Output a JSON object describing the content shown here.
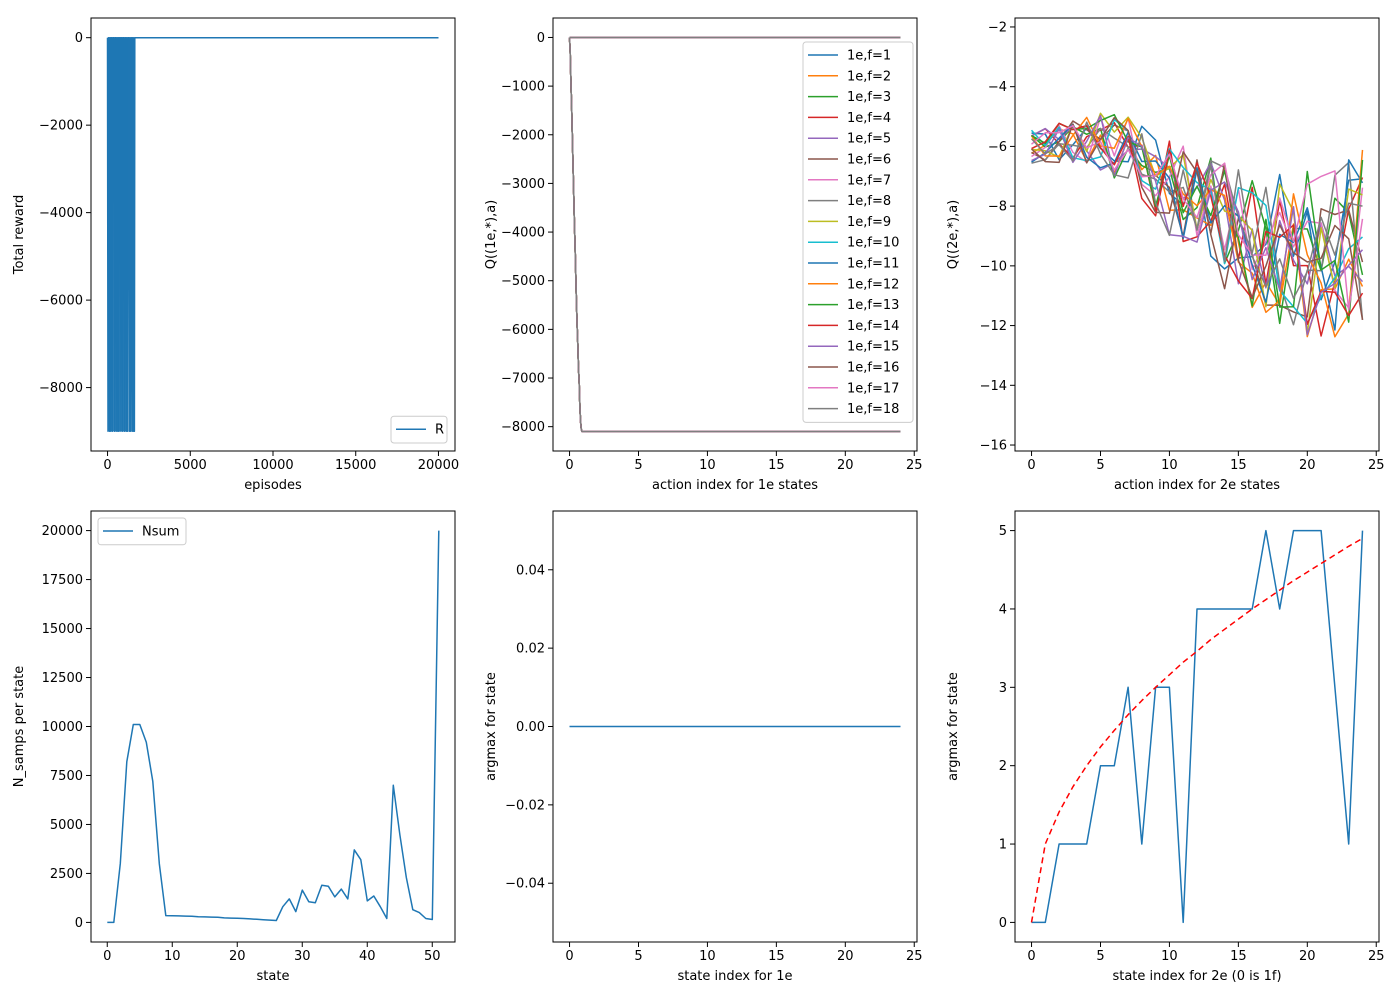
{
  "colors": {
    "tab10": [
      "#1f77b4",
      "#ff7f0e",
      "#2ca02c",
      "#d62728",
      "#9467bd",
      "#8c564b",
      "#e377c2",
      "#7f7f7f",
      "#bcbd22",
      "#17becf"
    ],
    "series_blue": "#1f77b4",
    "reference_red": "#ff0000"
  },
  "chart_data": [
    {
      "type": "line",
      "xlabel": "episodes",
      "ylabel": "Total reward",
      "xlim": [
        -1000,
        21000
      ],
      "ylim": [
        -9450,
        450
      ],
      "xticks": [
        0,
        5000,
        10000,
        15000,
        20000
      ],
      "yticks": [
        0,
        -2000,
        -4000,
        -6000,
        -8000
      ],
      "legend": {
        "placement": "lower right",
        "entries": [
          "R"
        ]
      },
      "series": [
        {
          "name": "R",
          "color": "#1f77b4",
          "style": "spiky",
          "x": [
            0,
            20000
          ],
          "y": [
            0,
            0
          ],
          "spikes": {
            "x_range": [
              0,
              1600
            ],
            "low": -9000,
            "high": 0
          }
        }
      ]
    },
    {
      "type": "line",
      "xlabel": "action index for 1e states",
      "ylabel": "Q((1e,*),a)",
      "xlim": [
        -1.2,
        25.2
      ],
      "ylim": [
        -8500,
        400
      ],
      "xticks": [
        0,
        5,
        10,
        15,
        20,
        25
      ],
      "yticks": [
        0,
        -1000,
        -2000,
        -3000,
        -4000,
        -5000,
        -6000,
        -7000,
        -8000
      ],
      "legend": {
        "placement": "upper right",
        "entries": [
          "1e,f=1",
          "1e,f=2",
          "1e,f=3",
          "1e,f=4",
          "1e,f=5",
          "1e,f=6",
          "1e,f=7",
          "1e,f=8",
          "1e,f=9",
          "1e,f=10",
          "1e,f=11",
          "1e,f=12",
          "1e,f=13",
          "1e,f=14",
          "1e,f=15",
          "1e,f=16",
          "1e,f=17",
          "1e,f=18"
        ]
      },
      "top_line": {
        "x": [
          0,
          24
        ],
        "y": [
          0,
          0
        ]
      },
      "drop_curve": {
        "x": [
          0,
          0.05,
          0.1,
          0.15,
          0.2,
          0.25,
          0.3,
          0.35,
          0.4,
          0.45,
          0.5,
          0.55,
          0.6,
          0.65,
          0.7,
          0.75,
          0.8,
          0.85,
          0.9,
          0.95,
          1.0,
          24
        ],
        "y": [
          0,
          -300,
          -900,
          -1400,
          -2000,
          -2600,
          -3200,
          -3800,
          -4300,
          -4900,
          -5400,
          -5900,
          -6300,
          -6800,
          -7100,
          -7600,
          -7900,
          -8050,
          -8100,
          -8100,
          -8100,
          -8100
        ]
      }
    },
    {
      "type": "line",
      "xlabel": "action index for 2e states",
      "ylabel": "Q((2e,*),a)",
      "xlim": [
        -1.2,
        25.2
      ],
      "ylim": [
        -16.2,
        -1.7
      ],
      "xticks": [
        0,
        5,
        10,
        15,
        20,
        25
      ],
      "yticks": [
        -2,
        -4,
        -6,
        -8,
        -10,
        -12,
        -14,
        -16
      ],
      "series_count": 18,
      "x": [
        0,
        1,
        2,
        3,
        4,
        5,
        6,
        7,
        8,
        9,
        10,
        11,
        12,
        13,
        14,
        15,
        16,
        17,
        18,
        19,
        20,
        21,
        22,
        23,
        24
      ],
      "trend": [
        -6.0,
        -6.0,
        -5.9,
        -5.9,
        -5.8,
        -5.8,
        -6.0,
        -6.2,
        -6.5,
        -6.9,
        -7.3,
        -7.7,
        -8.0,
        -8.3,
        -8.6,
        -8.9,
        -9.1,
        -9.3,
        -9.4,
        -9.5,
        -9.6,
        -9.6,
        -9.5,
        -9.3,
        -9.0
      ],
      "spread": [
        0.6,
        0.6,
        0.7,
        0.8,
        0.9,
        1.0,
        1.1,
        1.2,
        1.4,
        1.5,
        1.7,
        1.8,
        2.0,
        2.1,
        2.2,
        2.3,
        2.4,
        2.5,
        2.6,
        2.7,
        2.8,
        2.8,
        2.9,
        2.9,
        3.0
      ],
      "clip": [
        -15.5,
        -2.2
      ]
    },
    {
      "type": "line",
      "xlabel": "state",
      "ylabel": "N_samps per state",
      "xlim": [
        -2.5,
        53.5
      ],
      "ylim": [
        -1000,
        21000
      ],
      "xticks": [
        0,
        10,
        20,
        30,
        40,
        50
      ],
      "yticks": [
        0,
        2500,
        5000,
        7500,
        10000,
        12500,
        15000,
        17500,
        20000
      ],
      "legend": {
        "placement": "upper left",
        "entries": [
          "Nsum"
        ]
      },
      "series": [
        {
          "name": "Nsum",
          "color": "#1f77b4",
          "x": [
            0,
            1,
            2,
            3,
            4,
            5,
            6,
            7,
            8,
            9,
            10,
            11,
            12,
            13,
            14,
            15,
            16,
            17,
            18,
            19,
            20,
            21,
            22,
            23,
            24,
            25,
            26,
            27,
            28,
            29,
            30,
            31,
            32,
            33,
            34,
            35,
            36,
            37,
            38,
            39,
            40,
            41,
            42,
            43,
            44,
            45,
            46,
            47,
            48,
            49,
            50,
            51
          ],
          "y": [
            0,
            0,
            3000,
            8200,
            10100,
            10100,
            9200,
            7200,
            3000,
            350,
            340,
            330,
            320,
            310,
            290,
            280,
            270,
            260,
            230,
            220,
            210,
            200,
            180,
            160,
            140,
            120,
            100,
            800,
            1200,
            550,
            1650,
            1050,
            1000,
            1900,
            1850,
            1300,
            1700,
            1200,
            3700,
            3200,
            1100,
            1350,
            800,
            200,
            7000,
            4500,
            2300,
            650,
            500,
            200,
            150,
            20000
          ]
        }
      ]
    },
    {
      "type": "line",
      "xlabel": "state index for 1e",
      "ylabel": "argmax for state",
      "xlim": [
        -1.2,
        25.2
      ],
      "ylim": [
        -0.055,
        0.055
      ],
      "xticks": [
        0,
        5,
        10,
        15,
        20,
        25
      ],
      "yticks": [
        0.04,
        0.02,
        0.0,
        -0.02,
        -0.04
      ],
      "ytick_labels": [
        "0.04",
        "0.02",
        "0.00",
        "−0.02",
        "−0.04"
      ],
      "series": [
        {
          "x": [
            0,
            24
          ],
          "y": [
            0,
            0
          ],
          "color": "#1f77b4"
        }
      ]
    },
    {
      "type": "line",
      "xlabel": "state index for 2e (0 is 1f)",
      "ylabel": "argmax for state",
      "xlim": [
        -1.2,
        25.2
      ],
      "ylim": [
        -0.25,
        5.25
      ],
      "xticks": [
        0,
        5,
        10,
        15,
        20,
        25
      ],
      "yticks": [
        0,
        1,
        2,
        3,
        4,
        5
      ],
      "series": [
        {
          "color": "#1f77b4",
          "x": [
            0,
            1,
            2,
            3,
            4,
            5,
            6,
            7,
            8,
            9,
            10,
            11,
            12,
            13,
            14,
            15,
            16,
            17,
            18,
            19,
            20,
            21,
            22,
            23,
            24
          ],
          "y": [
            0,
            0,
            1,
            1,
            1,
            2,
            2,
            3,
            1,
            3,
            3,
            0,
            4,
            4,
            4,
            4,
            4,
            5,
            4,
            5,
            5,
            5,
            3,
            1,
            5
          ]
        },
        {
          "color": "#ff0000",
          "dashed": true,
          "x": [
            0,
            1,
            2,
            3,
            4,
            5,
            6,
            7,
            8,
            9,
            10,
            11,
            12,
            13,
            14,
            15,
            16,
            17,
            18,
            19,
            20,
            21,
            22,
            23,
            24
          ],
          "y": [
            0,
            1.0,
            1.41,
            1.73,
            2.0,
            2.24,
            2.45,
            2.65,
            2.83,
            3.0,
            3.16,
            3.32,
            3.46,
            3.61,
            3.74,
            3.87,
            4.0,
            4.12,
            4.24,
            4.36,
            4.47,
            4.58,
            4.69,
            4.8,
            4.9
          ]
        }
      ]
    }
  ]
}
